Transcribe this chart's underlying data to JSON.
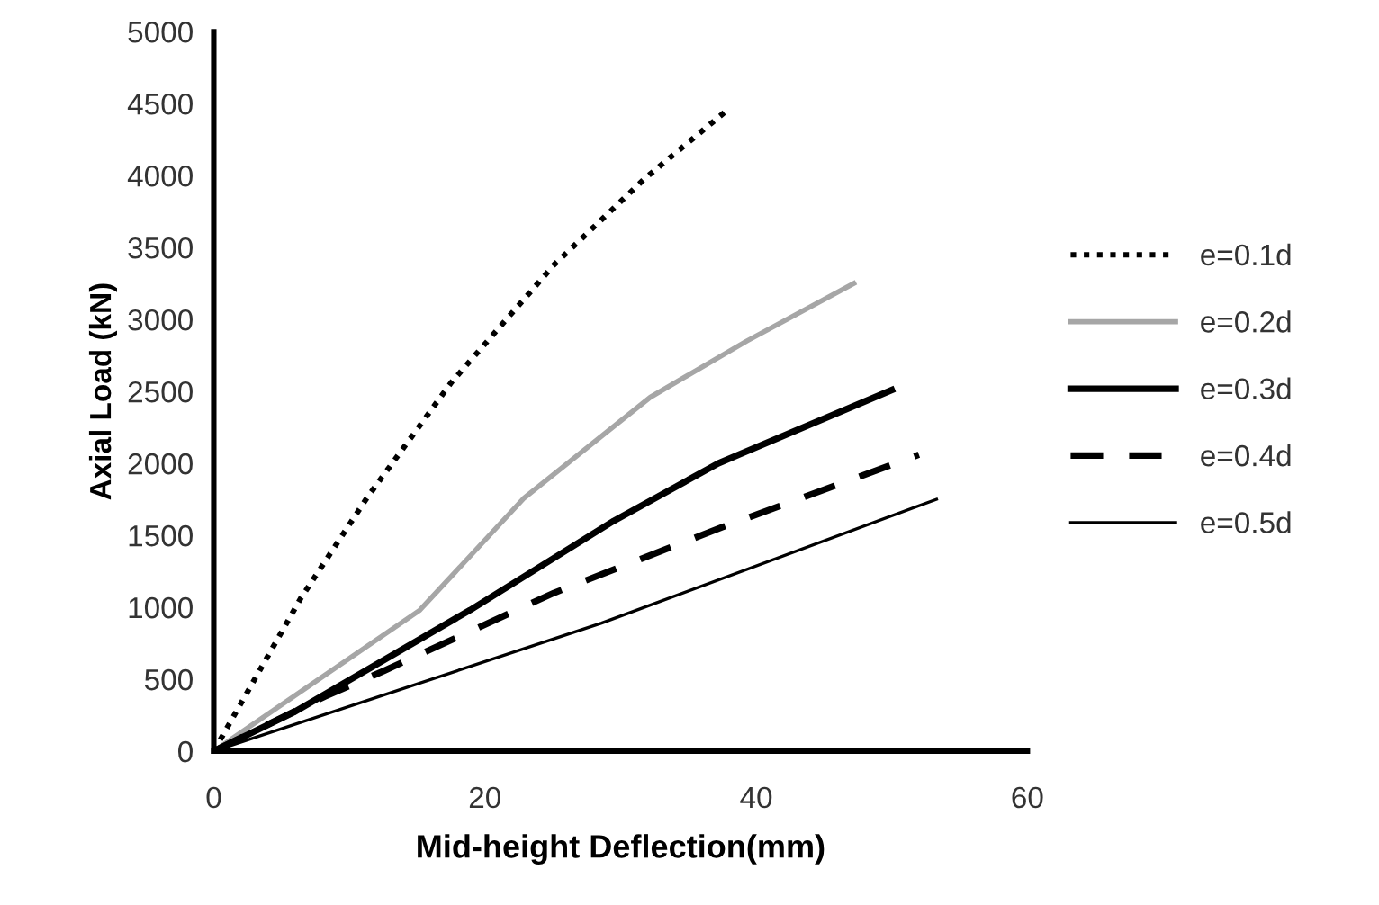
{
  "chart_data": {
    "type": "line",
    "xlabel": "Mid-height Deflection(mm)",
    "ylabel": "Axial Load (kN)",
    "xlim": [
      0,
      60
    ],
    "xticks": [
      0,
      20,
      40,
      60
    ],
    "ylim": [
      0,
      5000
    ],
    "yticks": [
      0,
      500,
      1000,
      1500,
      2000,
      2500,
      3000,
      3500,
      4000,
      4500,
      5000
    ],
    "grid": false,
    "legend": "right",
    "marker": "none",
    "series": [
      {
        "name": "e=0.1d",
        "color": "#000000",
        "line_style": "dotted",
        "x": [
          0,
          6.4,
          11.3,
          17.5,
          25.1,
          31.8,
          37.8
        ],
        "values": [
          0,
          1060,
          1760,
          2560,
          3380,
          3980,
          4450
        ]
      },
      {
        "name": "e=0.2d",
        "color": "#a6a6a6",
        "line_style": "solid",
        "x": [
          0,
          15.2,
          22.9,
          32.2,
          39.3,
          47.2
        ],
        "values": [
          0,
          980,
          1760,
          2460,
          2850,
          3250
        ]
      },
      {
        "name": "e=0.3d",
        "color": "#000000",
        "line_style": "solid",
        "x": [
          0,
          5.9,
          18.9,
          29.5,
          37.2,
          50
        ],
        "values": [
          0,
          270,
          980,
          1600,
          2000,
          2510
        ]
      },
      {
        "name": "e=0.4d",
        "color": "#000000",
        "line_style": "dashed",
        "x": [
          0,
          8.2,
          12.6,
          25.1,
          37.6,
          52
        ],
        "values": [
          0,
          380,
          560,
          1100,
          1560,
          2060
        ]
      },
      {
        "name": "e=0.5d",
        "color": "#000000",
        "line_style": "solid",
        "x": [
          0,
          28.6,
          53.3
        ],
        "values": [
          0,
          890,
          1750
        ]
      }
    ]
  }
}
